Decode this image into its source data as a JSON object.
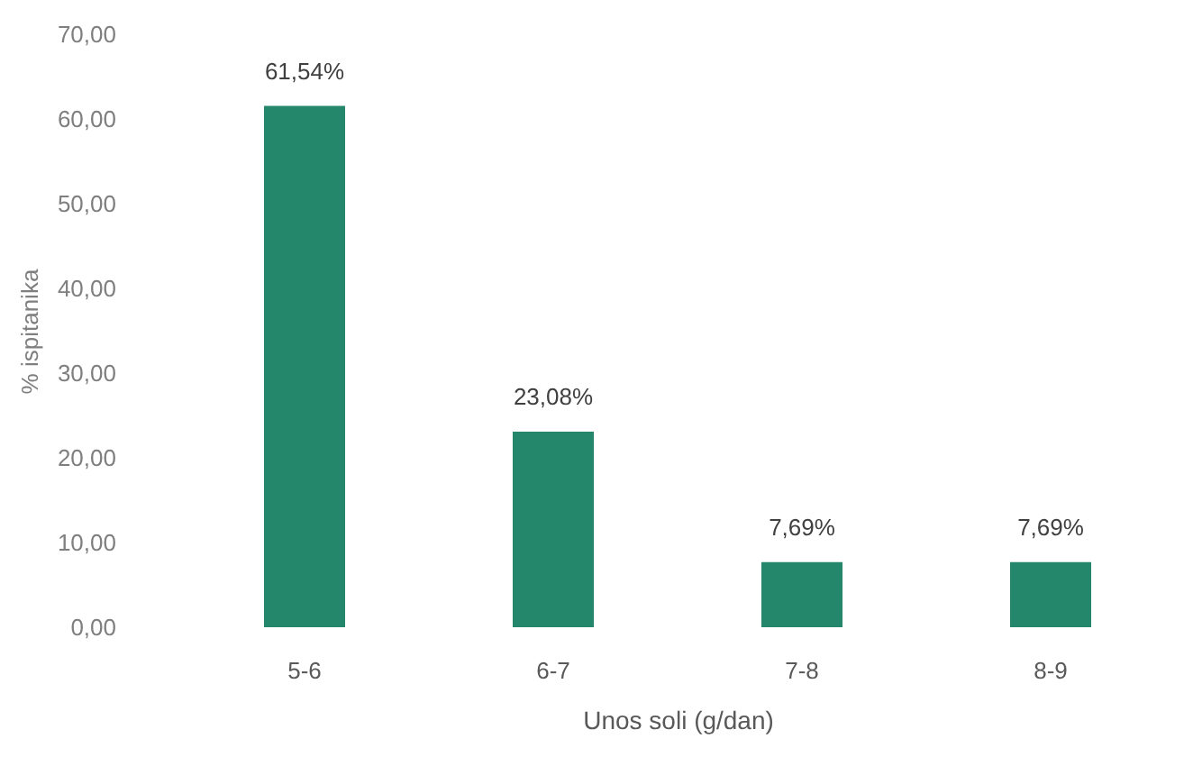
{
  "chart_data": {
    "type": "bar",
    "xlabel": "Unos soli (g/dan)",
    "ylabel": "% ispitanika",
    "categories": [
      "5-6",
      "6-7",
      "7-8",
      "8-9"
    ],
    "values": [
      61.54,
      23.08,
      7.69,
      7.69
    ],
    "color": "#24866a",
    "value_labels": [
      "61,54%",
      "23,08%",
      "7,69%",
      "7,69%"
    ],
    "ylim": [
      0,
      70
    ],
    "yticks": [
      {
        "value": 0,
        "label": "0,00"
      },
      {
        "value": 10,
        "label": "10,00"
      },
      {
        "value": 20,
        "label": "20,00"
      },
      {
        "value": 30,
        "label": "30,00"
      },
      {
        "value": 40,
        "label": "40,00"
      },
      {
        "value": 50,
        "label": "50,00"
      },
      {
        "value": 60,
        "label": "60,00"
      },
      {
        "value": 70,
        "label": "70,00"
      }
    ]
  }
}
